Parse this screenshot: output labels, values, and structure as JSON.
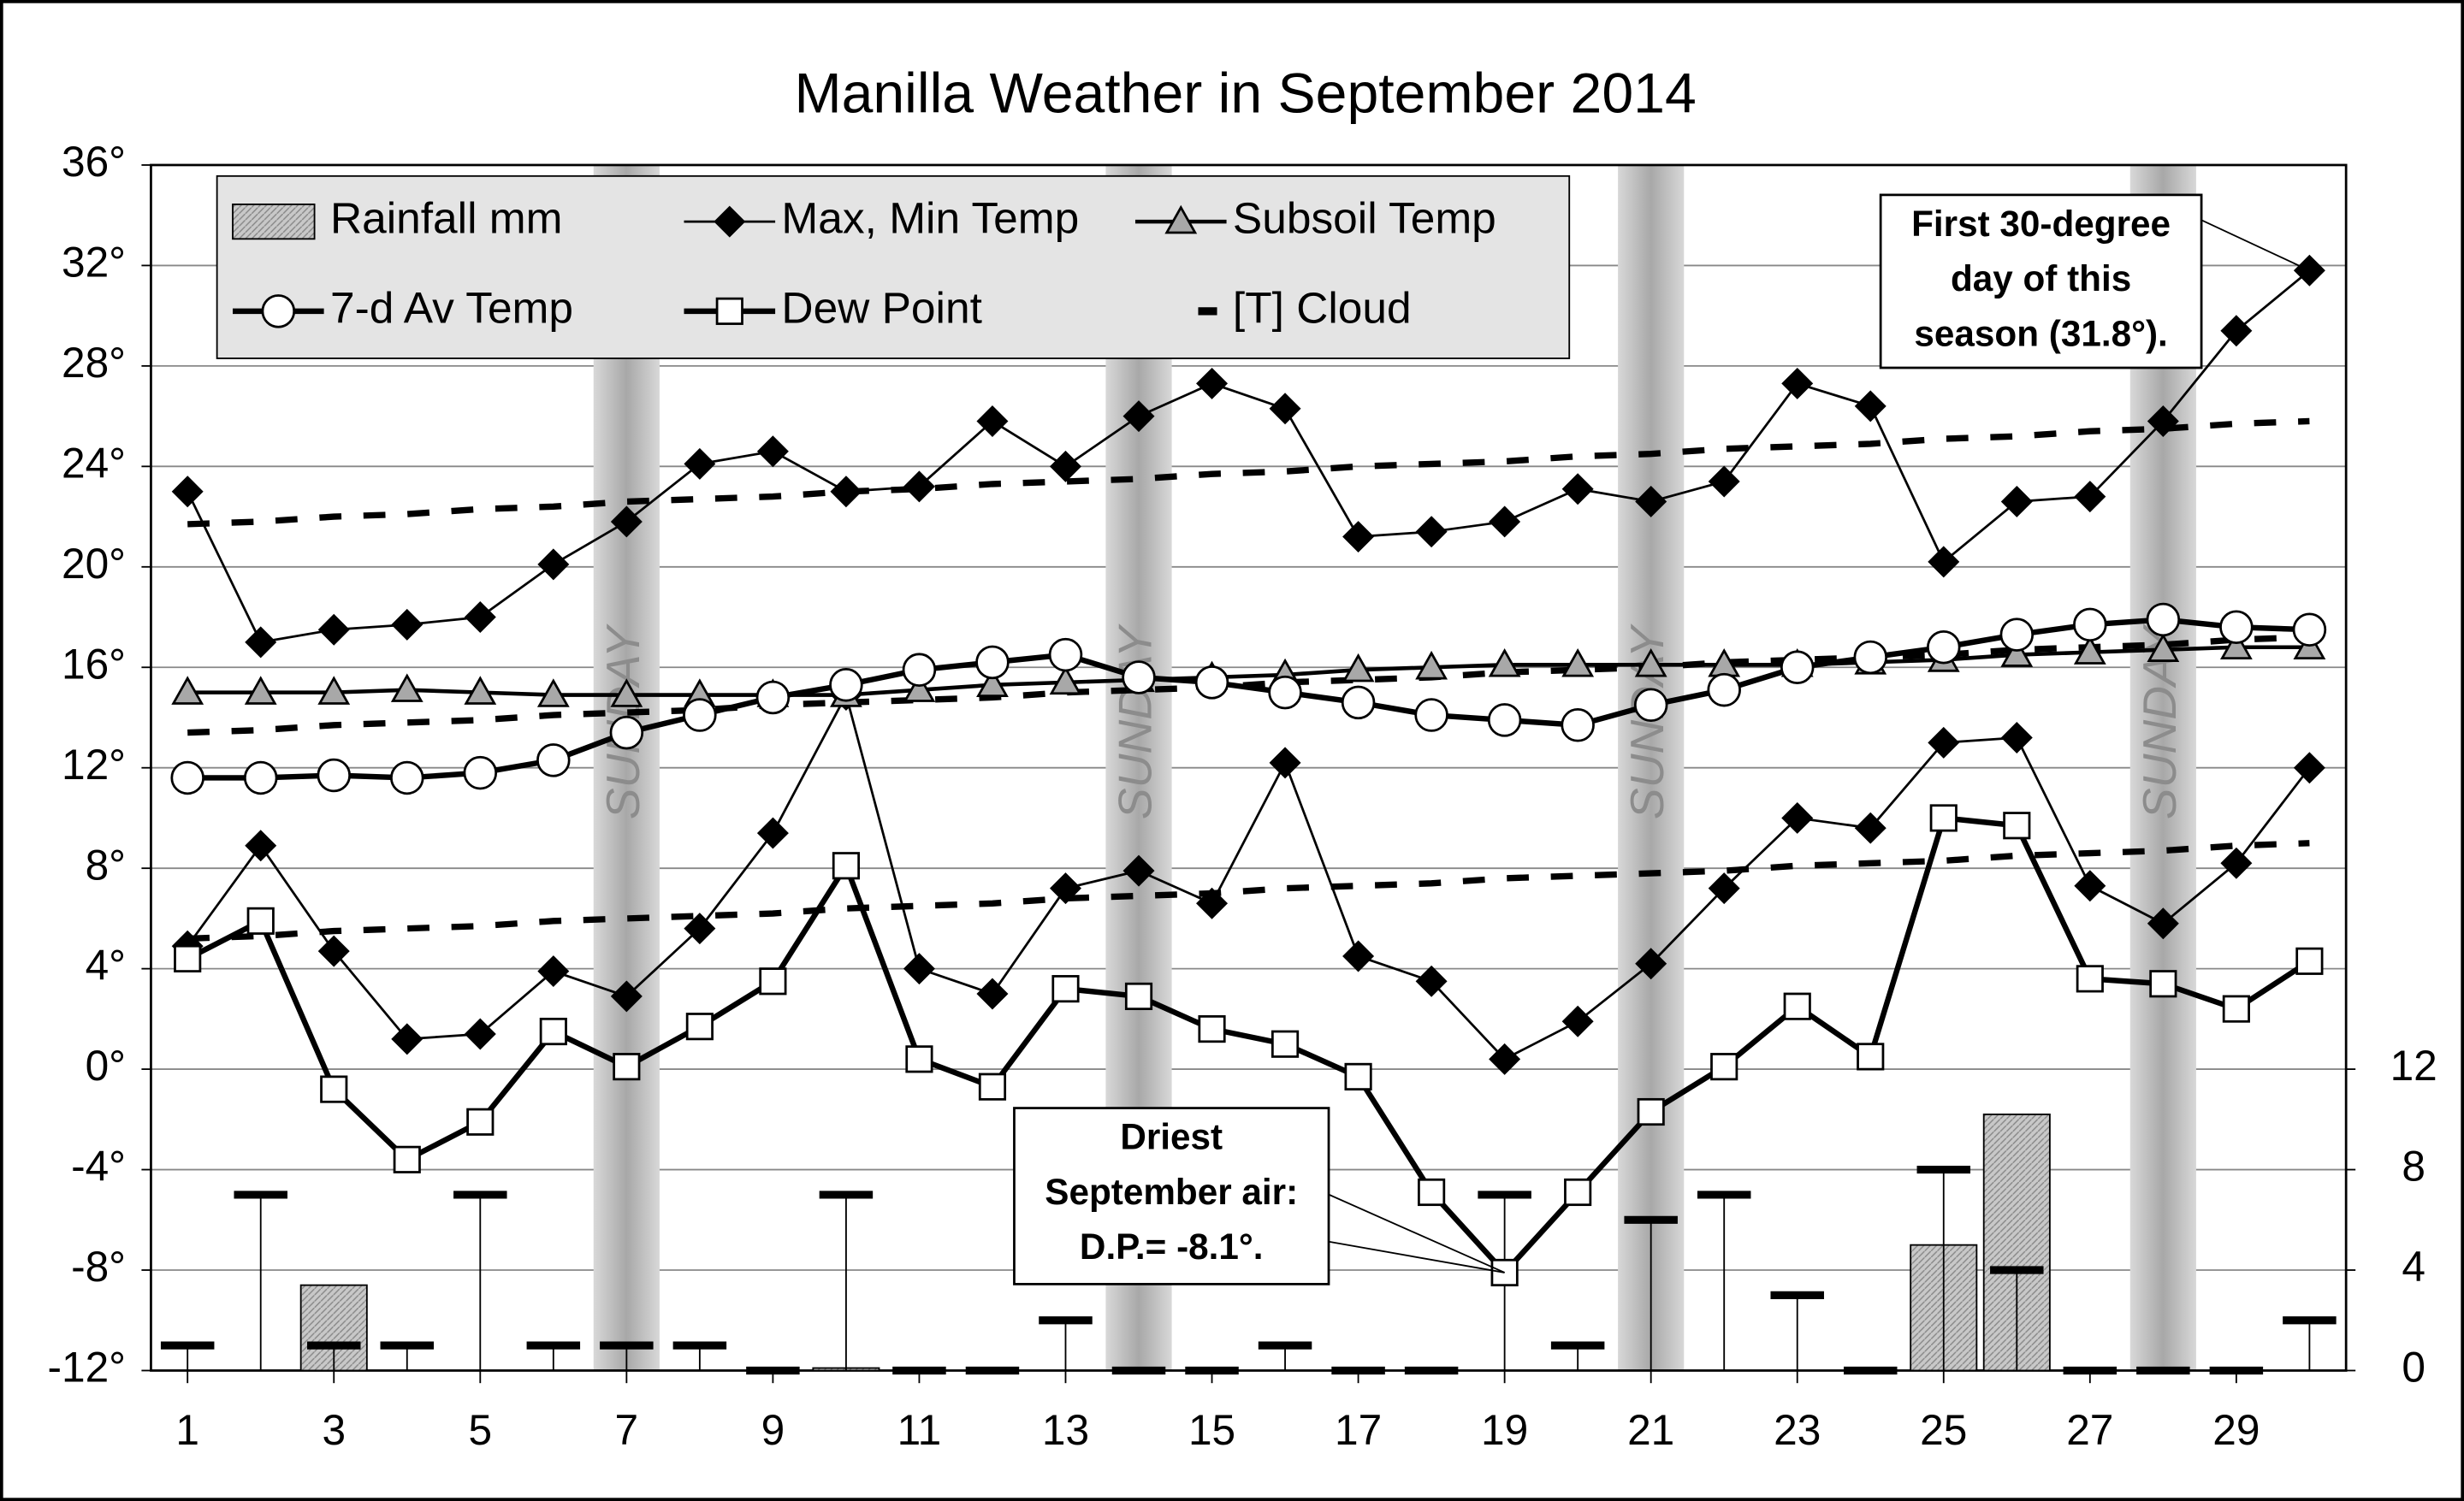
{
  "chart_data": {
    "type": "line",
    "title": "Manilla Weather in September 2014",
    "x": [
      1,
      2,
      3,
      4,
      5,
      6,
      7,
      8,
      9,
      10,
      11,
      12,
      13,
      14,
      15,
      16,
      17,
      18,
      19,
      20,
      21,
      22,
      23,
      24,
      25,
      26,
      27,
      28,
      29,
      30
    ],
    "xlim": [
      0.5,
      30.5
    ],
    "xticks": [
      1,
      3,
      5,
      7,
      9,
      11,
      13,
      15,
      17,
      19,
      21,
      23,
      25,
      27,
      29
    ],
    "ylim": [
      -12,
      36
    ],
    "yticks": [
      {
        "value": -12,
        "label": "-12°"
      },
      {
        "value": -8,
        "label": "-8°"
      },
      {
        "value": -4,
        "label": "-4°"
      },
      {
        "value": 0,
        "label": "0°"
      },
      {
        "value": 4,
        "label": "4°"
      },
      {
        "value": 8,
        "label": "8°"
      },
      {
        "value": 12,
        "label": "12°"
      },
      {
        "value": 16,
        "label": "16°"
      },
      {
        "value": 20,
        "label": "20°"
      },
      {
        "value": 24,
        "label": "24°"
      },
      {
        "value": 28,
        "label": "28°"
      },
      {
        "value": 32,
        "label": "32°"
      },
      {
        "value": 36,
        "label": "36°"
      }
    ],
    "y2lim": [
      0,
      48
    ],
    "y2ticks": [
      0,
      4,
      8,
      12
    ],
    "grid": true,
    "sundays": [
      7,
      14,
      21,
      28
    ],
    "sunday_label": "SUNDAY",
    "series": [
      {
        "name": "Rainfall mm",
        "type": "bar",
        "axis": "y2",
        "color": "#c8c8c8",
        "values": [
          0,
          0,
          3.4,
          0,
          0,
          0,
          0,
          0,
          0,
          0.1,
          0,
          0,
          0,
          0,
          0,
          0,
          0,
          0,
          0,
          0,
          0,
          0,
          0,
          0,
          5.0,
          10.2,
          0,
          0,
          0,
          0
        ]
      },
      {
        "name": "Max, Min Temp",
        "type": "line",
        "marker": "diamond",
        "color": "#000000",
        "width": 1.5,
        "values": [
          23.0,
          17.0,
          17.5,
          17.7,
          18.0,
          20.1,
          21.8,
          24.1,
          24.6,
          23.0,
          23.2,
          25.8,
          24.0,
          26.0,
          27.3,
          26.3,
          21.2,
          21.4,
          21.8,
          23.1,
          22.6,
          23.4,
          27.3,
          26.4,
          20.2,
          22.6,
          22.8,
          25.8,
          29.4,
          31.8
        ],
        "min_values": [
          4.9,
          8.9,
          4.7,
          1.2,
          1.4,
          3.9,
          2.9,
          5.6,
          9.4,
          14.9,
          4.0,
          3.0,
          7.2,
          7.9,
          6.6,
          12.2,
          4.5,
          3.5,
          0.4,
          1.9,
          4.2,
          7.2,
          10.0,
          9.6,
          13.0,
          13.2,
          7.3,
          5.8,
          8.2,
          12.0
        ]
      },
      {
        "name": "Subsoil Temp",
        "type": "line",
        "marker": "triangle",
        "color": "#000000",
        "marker_color": "#a8a8a8",
        "width": 2.5,
        "values": [
          15.0,
          15.0,
          15.0,
          15.1,
          15.0,
          14.9,
          14.9,
          14.9,
          14.9,
          14.9,
          15.1,
          15.3,
          15.4,
          15.5,
          15.6,
          15.7,
          15.9,
          16.0,
          16.1,
          16.1,
          16.1,
          16.1,
          16.1,
          16.2,
          16.3,
          16.5,
          16.6,
          16.7,
          16.8,
          16.8
        ]
      },
      {
        "name": "7-d Av Temp",
        "type": "line",
        "marker": "circle",
        "color": "#000000",
        "width": 3.5,
        "values": [
          11.6,
          11.6,
          11.7,
          11.6,
          11.8,
          12.3,
          13.4,
          14.1,
          14.8,
          15.3,
          15.9,
          16.2,
          16.5,
          15.6,
          15.4,
          15.0,
          14.6,
          14.1,
          13.9,
          13.7,
          14.5,
          15.1,
          16.0,
          16.4,
          16.8,
          17.3,
          17.7,
          17.9,
          17.6,
          17.5
        ]
      },
      {
        "name": "Dew Point",
        "type": "line",
        "marker": "square",
        "color": "#000000",
        "width": 3.5,
        "values": [
          4.4,
          5.9,
          -0.8,
          -3.6,
          -2.1,
          1.5,
          0.1,
          1.7,
          3.5,
          8.1,
          0.4,
          -0.7,
          3.2,
          2.9,
          1.6,
          1.0,
          -0.3,
          -4.9,
          -8.1,
          -4.9,
          -1.7,
          0.1,
          2.5,
          0.5,
          10.0,
          9.7,
          3.6,
          3.4,
          2.4,
          4.3
        ]
      },
      {
        "name": "[T] Cloud",
        "type": "dash",
        "axis": "y2",
        "color": "#000000",
        "values": [
          1,
          7,
          1,
          1,
          7,
          1,
          1,
          1,
          0,
          7,
          0,
          0,
          2,
          0,
          0,
          1,
          0,
          0,
          7,
          1,
          6,
          7,
          3,
          0,
          8,
          4,
          0,
          0,
          0,
          2
        ]
      },
      {
        "type": "dotted",
        "color": "#000000",
        "values": [
          21.7,
          21.8,
          22.0,
          22.1,
          22.3,
          22.4,
          22.6,
          22.7,
          22.8,
          23.0,
          23.1,
          23.3,
          23.4,
          23.5,
          23.7,
          23.8,
          24.0,
          24.1,
          24.2,
          24.4,
          24.5,
          24.7,
          24.8,
          24.9,
          25.1,
          25.2,
          25.4,
          25.5,
          25.7,
          25.8
        ]
      },
      {
        "type": "dotted",
        "color": "#000000",
        "values": [
          13.4,
          13.5,
          13.7,
          13.8,
          13.9,
          14.1,
          14.2,
          14.3,
          14.5,
          14.6,
          14.7,
          14.8,
          15.0,
          15.1,
          15.2,
          15.4,
          15.5,
          15.6,
          15.8,
          15.9,
          16.0,
          16.2,
          16.3,
          16.4,
          16.5,
          16.7,
          16.8,
          16.9,
          17.1,
          17.2
        ]
      },
      {
        "type": "dotted",
        "color": "#000000",
        "values": [
          5.2,
          5.3,
          5.5,
          5.6,
          5.7,
          5.9,
          6.0,
          6.1,
          6.2,
          6.4,
          6.5,
          6.6,
          6.8,
          6.9,
          7.0,
          7.2,
          7.3,
          7.4,
          7.6,
          7.7,
          7.8,
          7.9,
          8.1,
          8.2,
          8.3,
          8.5,
          8.6,
          8.7,
          8.9,
          9.0
        ]
      }
    ],
    "annotations": [
      {
        "lines": [
          "First 30-degree",
          "day of this",
          "season (31.8°)."
        ]
      },
      {
        "lines": [
          "Driest",
          "September air:",
          "D.P.= -8.1°."
        ]
      }
    ]
  }
}
